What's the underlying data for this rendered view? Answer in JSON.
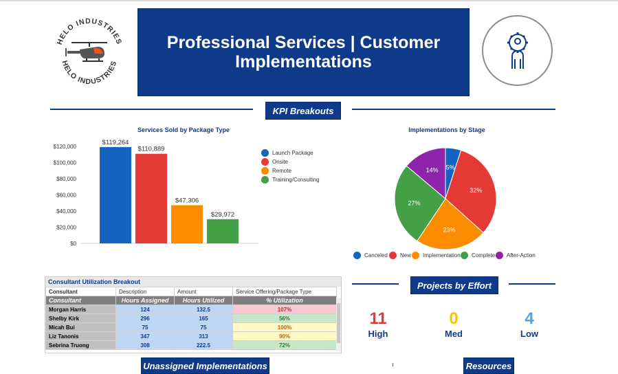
{
  "header": {
    "title_line1": "Professional Services | Customer",
    "title_line2": "Implementations",
    "logo_text_top": "HELO INDUSTRIES",
    "logo_text_bottom": "HELO INDUSTRIES"
  },
  "sections": {
    "kpi": "KPI Breakouts",
    "effort": "Projects by Effort",
    "unassigned": "Unassigned Implementations",
    "resources": "Resources"
  },
  "chart_data": [
    {
      "type": "bar",
      "title": "Services Sold by Package Type",
      "categories": [
        "Launch Package",
        "Onsite",
        "Remote",
        "Training/Consulting"
      ],
      "values": [
        119264,
        110889,
        47306,
        29972
      ],
      "data_labels": [
        "$119,264",
        "$110,889",
        "$47,306",
        "$29,972"
      ],
      "colors": [
        "#1565c0",
        "#e53935",
        "#fb8c00",
        "#43a047"
      ],
      "ylim": [
        0,
        120000
      ],
      "yticks": [
        "$0",
        "$20,000",
        "$40,000",
        "$60,000",
        "$80,000",
        "$100,000",
        "$120,000"
      ],
      "legend": "right"
    },
    {
      "type": "pie",
      "title": "Implementations by Stage",
      "categories": [
        "Canceled",
        "New",
        "Implementation",
        "Complete",
        "After-Action"
      ],
      "values": [
        5,
        32,
        23,
        27,
        14
      ],
      "labels": [
        "5%",
        "32%",
        "23%",
        "27%",
        "14%"
      ],
      "colors": [
        "#1565c0",
        "#e53935",
        "#fb8c00",
        "#43a047",
        "#8e24aa"
      ],
      "legend": "bottom"
    }
  ],
  "table": {
    "title": "Consultant Utilization Breakout",
    "header_row": [
      "Consultant",
      "Description",
      "Amount",
      "Service Offering/Package Type"
    ],
    "columns": [
      "Consultant",
      "Hours Assigned",
      "Hours Utilized",
      "% Utilization"
    ],
    "rows": [
      {
        "name": "Morgan Harris",
        "assigned": "124",
        "utilized": "132.5",
        "pct": "107%"
      },
      {
        "name": "Shelby Kirk",
        "assigned": "296",
        "utilized": "165",
        "pct": "56%"
      },
      {
        "name": "Micah Bui",
        "assigned": "75",
        "utilized": "75",
        "pct": "100%"
      },
      {
        "name": "Liz Tanonis",
        "assigned": "347",
        "utilized": "313",
        "pct": "90%"
      },
      {
        "name": "Sebrina Truong",
        "assigned": "308",
        "utilized": "222.5",
        "pct": "72%"
      }
    ],
    "row_colors": [
      {
        "bg": "#f8c8d0",
        "fg": "#c62828"
      },
      {
        "bg": "#c8e6c9",
        "fg": "#2e7d32"
      },
      {
        "bg": "#fff9c4",
        "fg": "#e65100"
      },
      {
        "bg": "#fff9c4",
        "fg": "#e65100"
      },
      {
        "bg": "#c8e6c9",
        "fg": "#2e7d32"
      }
    ]
  },
  "effort": [
    {
      "value": "11",
      "label": "High",
      "color": "#e53935"
    },
    {
      "value": "0",
      "label": "Med",
      "color": "#f9c400"
    },
    {
      "value": "4",
      "label": "Low",
      "color": "#4fa3e0"
    }
  ],
  "icons": {
    "logo": "helicopter-logo",
    "banner_right": "gear-person-icon"
  }
}
